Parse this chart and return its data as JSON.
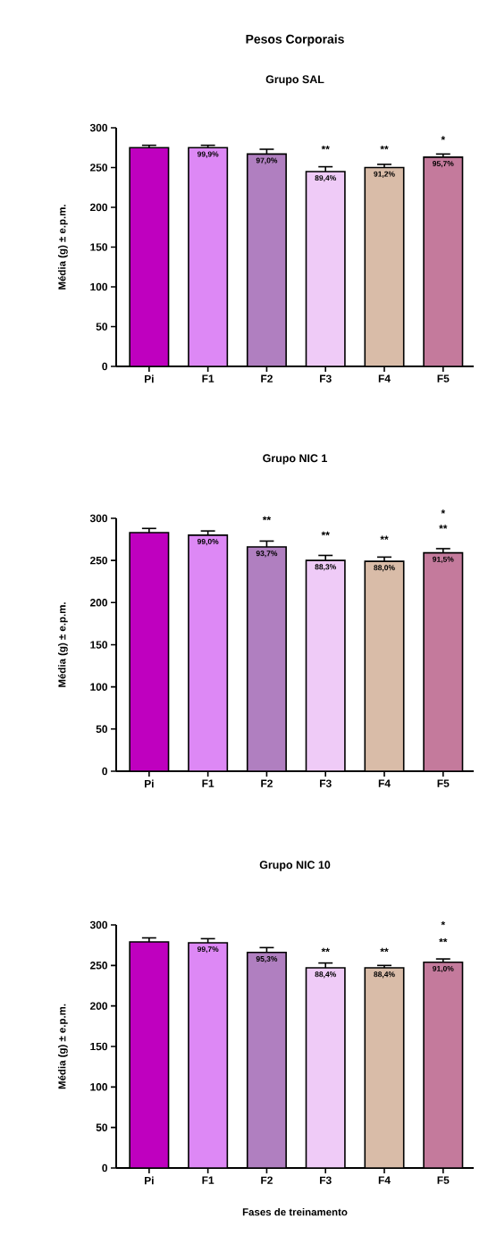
{
  "chart_data": [
    {
      "type": "bar",
      "title": "Pesos Corporais",
      "subtitle": "Grupo SAL",
      "ylabel": "Média (g) ± e.p.m.",
      "categories": [
        "Pi",
        "F1",
        "F2",
        "F3",
        "F4",
        "F5"
      ],
      "values": [
        275,
        275,
        267,
        245,
        250,
        263
      ],
      "errors": [
        3,
        3,
        6,
        6,
        4,
        4
      ],
      "colors": [
        "#bf00bf",
        "#dd88f5",
        "#b07fc0",
        "#efcbf7",
        "#d9bca8",
        "#c47a9c"
      ],
      "annotations": [
        "**",
        "**",
        "*",
        {
          "text": "99,9%",
          "x": "F1",
          "y": 275
        },
        {
          "text": "97,0%",
          "x": "F2",
          "y": 267
        },
        {
          "text": "89,4%",
          "x": "F3",
          "y": 245
        },
        {
          "text": "91,2%",
          "x": "F4",
          "y": 250
        },
        {
          "text": "95,7%",
          "x": "F5",
          "y": 263
        }
      ],
      "ylim": [
        0,
        300
      ],
      "yticks": [
        0,
        50,
        100,
        150,
        200,
        250,
        300
      ]
    },
    {
      "type": "bar",
      "title": "Grupo NIC 1",
      "ylabel": "Média (g) ± e.p.m.",
      "categories": [
        "Pi",
        "F1",
        "F2",
        "F3",
        "F4",
        "F5"
      ],
      "values": [
        283,
        280,
        266,
        250,
        249,
        259
      ],
      "errors": [
        5,
        5,
        7,
        6,
        5,
        5
      ],
      "colors": [
        "#bf00bf",
        "#dd88f5",
        "#b07fc0",
        "#efcbf7",
        "#d9bca8",
        "#c47a9c"
      ],
      "annotations": [
        "**",
        "**",
        "**",
        "**",
        "*",
        {
          "text": "99,0%",
          "x": "F1",
          "y": 280
        },
        {
          "text": "93,7%",
          "x": "F2",
          "y": 266
        },
        {
          "text": "88,3%",
          "x": "F3",
          "y": 250
        },
        {
          "text": "88,0%",
          "x": "F4",
          "y": 249
        },
        {
          "text": "91,5%",
          "x": "F5",
          "y": 259
        }
      ],
      "ylim": [
        0,
        300
      ],
      "yticks": [
        0,
        50,
        100,
        150,
        200,
        250,
        300
      ]
    },
    {
      "type": "bar",
      "title": "Grupo NIC 10",
      "ylabel": "Média (g) ± e.p.m.",
      "xlabel": "Fases de treinamento",
      "categories": [
        "Pi",
        "F1",
        "F2",
        "F3",
        "F4",
        "F5"
      ],
      "values": [
        279,
        278,
        266,
        247,
        247,
        254
      ],
      "errors": [
        5,
        5,
        6,
        6,
        3,
        4
      ],
      "colors": [
        "#bf00bf",
        "#dd88f5",
        "#b07fc0",
        "#efcbf7",
        "#d9bca8",
        "#c47a9c"
      ],
      "annotations": [
        "**",
        "**",
        "**",
        "*",
        {
          "text": "99,7%",
          "x": "F1",
          "y": 278
        },
        {
          "text": "95,3%",
          "x": "F2",
          "y": 266
        },
        {
          "text": "88,4%",
          "x": "F3",
          "y": 247
        },
        {
          "text": "88,4%",
          "x": "F4",
          "y": 247
        },
        {
          "text": "91,0%",
          "x": "F5",
          "y": 254
        }
      ],
      "ylim": [
        0,
        300
      ],
      "yticks": [
        0,
        50,
        100,
        150,
        200,
        250,
        300
      ]
    }
  ]
}
